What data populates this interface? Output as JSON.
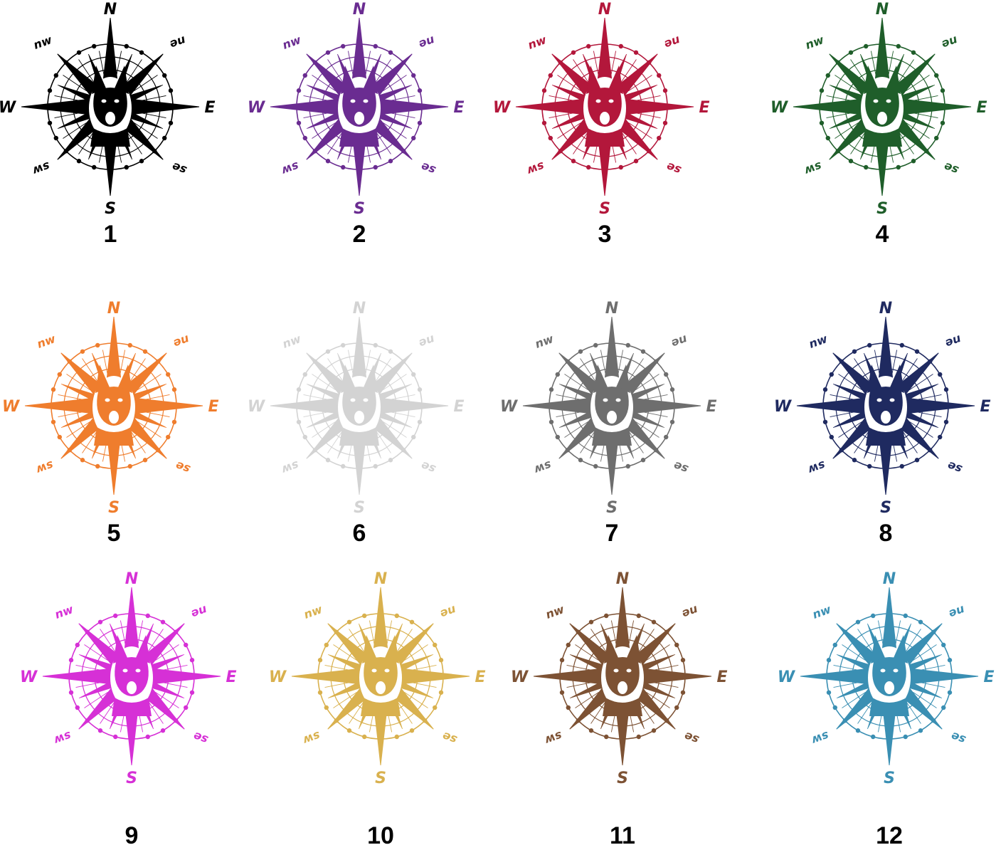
{
  "directions": {
    "n": "N",
    "s": "S",
    "e": "E",
    "w": "W",
    "ne": "ne",
    "nw": "nw",
    "se": "se",
    "sw": "sw"
  },
  "variants": [
    {
      "number": "1",
      "color": "#000000"
    },
    {
      "number": "2",
      "color": "#6a2c91"
    },
    {
      "number": "3",
      "color": "#b3173b"
    },
    {
      "number": "4",
      "color": "#1f5e2a"
    },
    {
      "number": "5",
      "color": "#ef7d2d"
    },
    {
      "number": "6",
      "color": "#d3d3d3"
    },
    {
      "number": "7",
      "color": "#6e6e6e"
    },
    {
      "number": "8",
      "color": "#1f2a60"
    },
    {
      "number": "9",
      "color": "#d630d6"
    },
    {
      "number": "10",
      "color": "#d9b14e"
    },
    {
      "number": "11",
      "color": "#7d5234"
    },
    {
      "number": "12",
      "color": "#3a8fb3"
    }
  ]
}
